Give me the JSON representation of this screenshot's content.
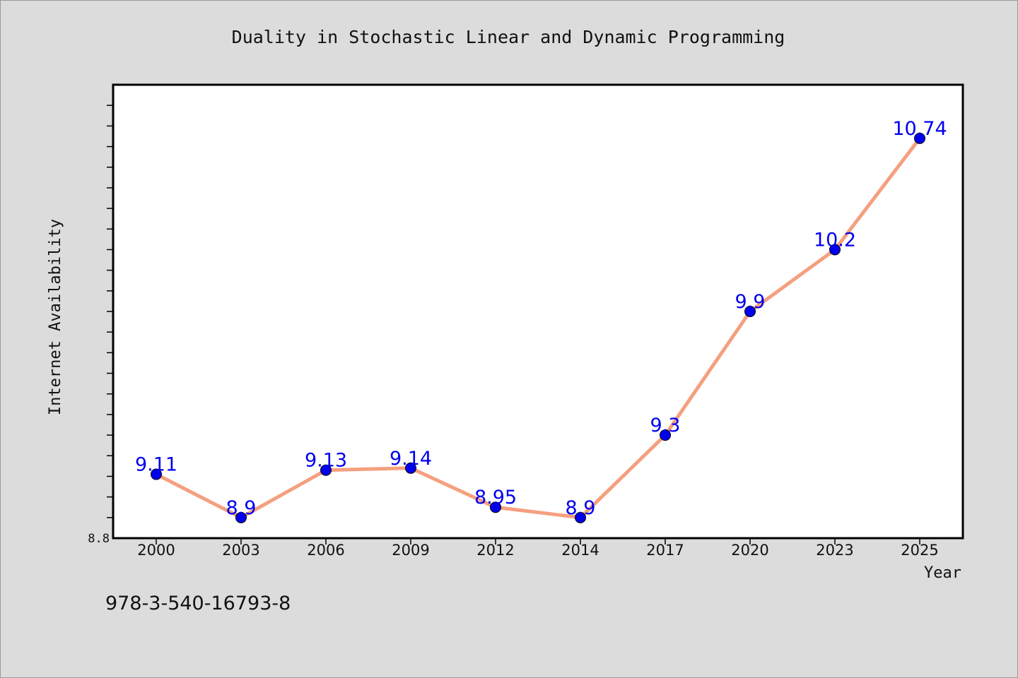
{
  "figure": {
    "footer_text": "978-3-540-16793-8"
  },
  "chart_data": {
    "type": "line",
    "title": "Duality in Stochastic Linear and Dynamic Programming",
    "xlabel": "Year",
    "ylabel": "Internet Availability",
    "categories": [
      "2000",
      "2003",
      "2006",
      "2009",
      "2012",
      "2014",
      "2017",
      "2020",
      "2023",
      "2025"
    ],
    "series": [
      {
        "values": [
          9.11,
          8.9,
          9.13,
          9.14,
          8.95,
          8.9,
          9.3,
          9.9,
          10.2,
          10.74
        ],
        "labels": [
          "9.11",
          "8.9",
          "9.13",
          "9.14",
          "8.95",
          "8.9",
          "9.3",
          "9.9",
          "10.2",
          "10.74"
        ],
        "line_color": "#f4a07f",
        "marker_color": "#0000ee",
        "label_color": "#0000ee"
      }
    ],
    "ylim": [
      8.8,
      11.0
    ],
    "ytick_labels": [
      "8.8"
    ],
    "y_minor_tick_step": 0.1,
    "grid": false,
    "legend": false,
    "plot_background": "#ffffff"
  }
}
